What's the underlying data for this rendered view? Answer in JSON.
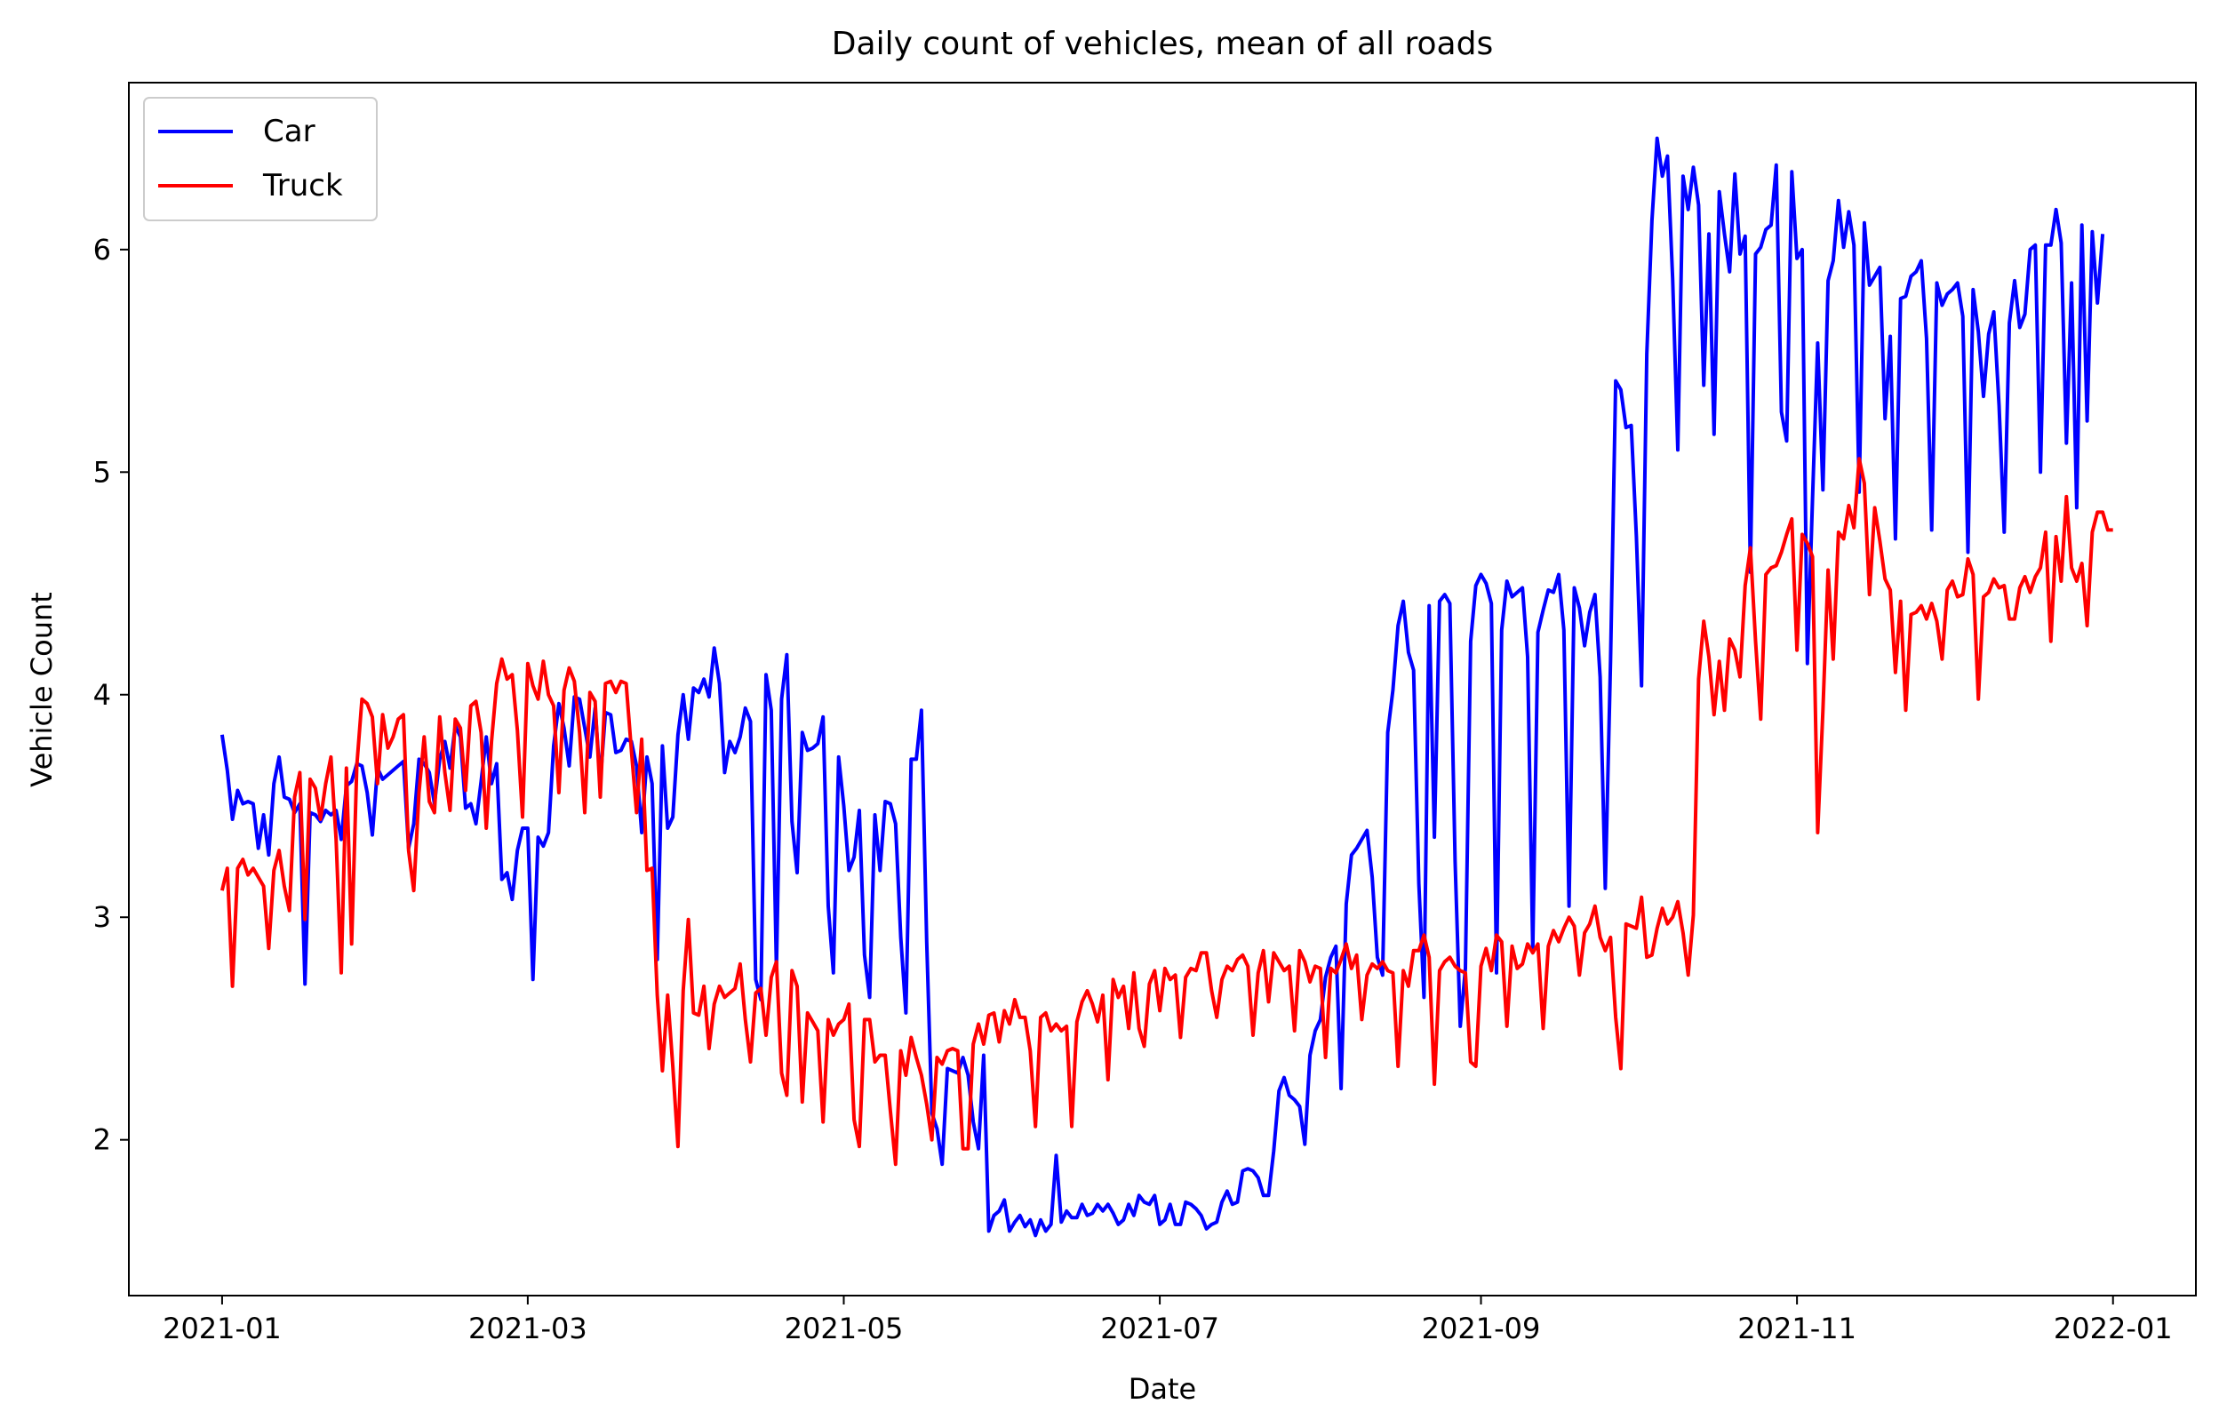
{
  "chart_data": {
    "type": "line",
    "title": "Daily count of vehicles, mean of all roads",
    "xlabel": "Date",
    "ylabel": "Vehicle Count",
    "x_start": "2021-01-01",
    "x_ticks": [
      "2021-01",
      "2021-03",
      "2021-05",
      "2021-07",
      "2021-09",
      "2021-11",
      "2022-01"
    ],
    "y_ticks": [
      2,
      3,
      4,
      5,
      6
    ],
    "ylim": [
      1.3,
      6.75
    ],
    "xlim": [
      "2020-12-14",
      "2022-01-17"
    ],
    "grid": false,
    "legend_position": "top-left",
    "series": [
      {
        "name": "Car",
        "color": "#0000ff",
        "values": [
          3.82,
          3.66,
          3.44,
          3.57,
          3.51,
          3.52,
          3.51,
          3.31,
          3.46,
          3.28,
          3.6,
          3.72,
          3.54,
          3.53,
          3.47,
          3.51,
          2.7,
          3.47,
          3.46,
          3.43,
          3.48,
          3.46,
          3.48,
          3.35,
          3.59,
          3.61,
          3.69,
          3.68,
          3.56,
          3.37,
          3.67,
          3.62,
          3.64,
          3.66,
          3.68,
          3.7,
          3.31,
          3.42,
          3.71,
          3.69,
          3.65,
          3.51,
          3.71,
          3.79,
          3.67,
          3.86,
          3.81,
          3.49,
          3.51,
          3.42,
          3.61,
          3.81,
          3.6,
          3.69,
          3.17,
          3.2,
          3.08,
          3.3,
          3.4,
          3.4,
          2.72,
          3.36,
          3.32,
          3.38,
          3.77,
          3.96,
          3.85,
          3.68,
          3.99,
          3.98,
          3.85,
          3.72,
          3.94,
          3.61,
          3.92,
          3.91,
          3.74,
          3.75,
          3.8,
          3.79,
          3.68,
          3.38,
          3.72,
          3.6,
          2.81,
          3.77,
          3.4,
          3.45,
          3.82,
          4.0,
          3.8,
          4.03,
          4.01,
          4.07,
          3.99,
          4.21,
          4.05,
          3.65,
          3.79,
          3.74,
          3.81,
          3.94,
          3.88,
          2.72,
          2.63,
          4.09,
          3.93,
          2.77,
          3.98,
          4.18,
          3.43,
          3.2,
          3.83,
          3.75,
          3.76,
          3.78,
          3.9,
          3.05,
          2.75,
          3.72,
          3.5,
          3.21,
          3.27,
          3.48,
          2.83,
          2.64,
          3.46,
          3.21,
          3.52,
          3.51,
          3.42,
          2.91,
          2.57,
          3.71,
          3.71,
          3.93,
          2.89,
          2.12,
          2.05,
          1.89,
          2.32,
          2.31,
          2.3,
          2.37,
          2.29,
          2.08,
          1.96,
          2.38,
          1.59,
          1.66,
          1.68,
          1.73,
          1.59,
          1.63,
          1.66,
          1.61,
          1.64,
          1.57,
          1.64,
          1.59,
          1.62,
          1.93,
          1.63,
          1.68,
          1.65,
          1.65,
          1.71,
          1.66,
          1.67,
          1.71,
          1.68,
          1.71,
          1.67,
          1.62,
          1.64,
          1.71,
          1.66,
          1.75,
          1.72,
          1.71,
          1.75,
          1.62,
          1.64,
          1.71,
          1.62,
          1.62,
          1.72,
          1.71,
          1.69,
          1.66,
          1.6,
          1.62,
          1.63,
          1.72,
          1.77,
          1.71,
          1.72,
          1.86,
          1.87,
          1.86,
          1.83,
          1.75,
          1.75,
          1.95,
          2.22,
          2.28,
          2.2,
          2.18,
          2.15,
          1.98,
          2.38,
          2.49,
          2.54,
          2.73,
          2.82,
          2.87,
          2.23,
          3.06,
          3.28,
          3.31,
          3.35,
          3.39,
          3.18,
          2.82,
          2.74,
          3.83,
          4.02,
          4.31,
          4.42,
          4.19,
          4.11,
          3.15,
          2.64,
          4.4,
          3.36,
          4.42,
          4.45,
          4.41,
          3.25,
          2.51,
          2.77,
          4.24,
          4.49,
          4.54,
          4.5,
          4.41,
          2.75,
          4.29,
          4.51,
          4.44,
          4.46,
          4.48,
          4.17,
          2.85,
          4.28,
          4.38,
          4.47,
          4.46,
          4.54,
          4.29,
          3.05,
          4.48,
          4.39,
          4.22,
          4.37,
          4.45,
          4.08,
          3.13,
          4.15,
          5.41,
          5.37,
          5.2,
          5.21,
          4.71,
          4.04,
          5.53,
          6.13,
          6.5,
          6.33,
          6.42,
          5.87,
          5.1,
          6.33,
          6.18,
          6.37,
          6.2,
          5.39,
          6.07,
          5.17,
          6.26,
          6.07,
          5.9,
          6.34,
          5.98,
          6.06,
          4.55,
          5.98,
          6.01,
          6.09,
          6.11,
          6.38,
          5.27,
          5.14,
          6.35,
          5.96,
          6.0,
          4.14,
          4.88,
          5.58,
          4.92,
          5.86,
          5.95,
          6.22,
          6.01,
          6.17,
          6.02,
          4.91,
          6.12,
          5.84,
          5.88,
          5.92,
          5.24,
          5.61,
          4.7,
          5.78,
          5.79,
          5.88,
          5.9,
          5.95,
          5.6,
          4.74,
          5.85,
          5.75,
          5.8,
          5.82,
          5.85,
          5.7,
          4.64,
          5.82,
          5.63,
          5.34,
          5.62,
          5.72,
          5.3,
          4.73,
          5.67,
          5.86,
          5.65,
          5.71,
          6.0,
          6.02,
          5.0,
          6.02,
          6.02,
          6.18,
          6.03,
          5.13,
          5.85,
          4.84,
          6.11,
          5.23,
          6.08,
          5.76,
          6.07
        ]
      },
      {
        "name": "Truck",
        "color": "#ff0000",
        "values": [
          3.12,
          3.22,
          2.69,
          3.22,
          3.26,
          3.19,
          3.22,
          3.18,
          3.14,
          2.86,
          3.21,
          3.3,
          3.14,
          3.03,
          3.54,
          3.65,
          2.99,
          3.62,
          3.58,
          3.44,
          3.6,
          3.72,
          3.35,
          2.75,
          3.67,
          2.88,
          3.68,
          3.98,
          3.96,
          3.9,
          3.6,
          3.91,
          3.76,
          3.81,
          3.89,
          3.91,
          3.3,
          3.12,
          3.56,
          3.81,
          3.52,
          3.47,
          3.9,
          3.65,
          3.48,
          3.89,
          3.85,
          3.57,
          3.95,
          3.97,
          3.83,
          3.4,
          3.79,
          4.05,
          4.16,
          4.07,
          4.09,
          3.84,
          3.45,
          4.14,
          4.04,
          3.98,
          4.15,
          4.0,
          3.95,
          3.56,
          4.02,
          4.12,
          4.06,
          3.83,
          3.47,
          4.01,
          3.97,
          3.54,
          4.05,
          4.06,
          4.01,
          4.06,
          4.05,
          3.75,
          3.47,
          3.8,
          3.21,
          3.22,
          2.65,
          2.31,
          2.65,
          2.33,
          1.97,
          2.67,
          2.99,
          2.57,
          2.56,
          2.69,
          2.41,
          2.61,
          2.69,
          2.64,
          2.66,
          2.68,
          2.79,
          2.54,
          2.35,
          2.66,
          2.68,
          2.47,
          2.73,
          2.8,
          2.3,
          2.2,
          2.76,
          2.69,
          2.17,
          2.57,
          2.53,
          2.49,
          2.08,
          2.54,
          2.47,
          2.52,
          2.54,
          2.61,
          2.09,
          1.97,
          2.54,
          2.54,
          2.35,
          2.38,
          2.38,
          2.13,
          1.89,
          2.4,
          2.29,
          2.46,
          2.37,
          2.29,
          2.16,
          2.0,
          2.37,
          2.34,
          2.4,
          2.41,
          2.4,
          1.96,
          1.96,
          2.43,
          2.52,
          2.43,
          2.56,
          2.57,
          2.44,
          2.58,
          2.52,
          2.63,
          2.55,
          2.55,
          2.4,
          2.06,
          2.55,
          2.57,
          2.49,
          2.52,
          2.49,
          2.51,
          2.06,
          2.53,
          2.62,
          2.67,
          2.61,
          2.53,
          2.65,
          2.27,
          2.72,
          2.64,
          2.69,
          2.5,
          2.75,
          2.5,
          2.42,
          2.7,
          2.76,
          2.58,
          2.77,
          2.72,
          2.74,
          2.46,
          2.73,
          2.77,
          2.76,
          2.84,
          2.84,
          2.67,
          2.55,
          2.72,
          2.78,
          2.76,
          2.81,
          2.83,
          2.78,
          2.47,
          2.75,
          2.85,
          2.62,
          2.84,
          2.8,
          2.76,
          2.78,
          2.49,
          2.85,
          2.8,
          2.71,
          2.78,
          2.77,
          2.37,
          2.77,
          2.75,
          2.81,
          2.88,
          2.77,
          2.83,
          2.54,
          2.74,
          2.79,
          2.77,
          2.8,
          2.76,
          2.75,
          2.33,
          2.76,
          2.69,
          2.85,
          2.85,
          2.92,
          2.82,
          2.25,
          2.76,
          2.8,
          2.82,
          2.78,
          2.76,
          2.75,
          2.35,
          2.33,
          2.78,
          2.86,
          2.76,
          2.92,
          2.89,
          2.51,
          2.87,
          2.77,
          2.79,
          2.88,
          2.84,
          2.88,
          2.5,
          2.87,
          2.94,
          2.89,
          2.95,
          3.0,
          2.96,
          2.74,
          2.93,
          2.97,
          3.05,
          2.91,
          2.85,
          2.91,
          2.55,
          2.32,
          2.97,
          2.96,
          2.95,
          3.09,
          2.82,
          2.83,
          2.95,
          3.04,
          2.97,
          3.0,
          3.07,
          2.93,
          2.74,
          3.01,
          4.07,
          4.33,
          4.17,
          3.91,
          4.15,
          3.93,
          4.25,
          4.2,
          4.08,
          4.49,
          4.66,
          4.24,
          3.89,
          4.54,
          4.57,
          4.58,
          4.64,
          4.72,
          4.79,
          4.2,
          4.72,
          4.68,
          4.62,
          3.38,
          3.93,
          4.56,
          4.16,
          4.73,
          4.7,
          4.85,
          4.75,
          5.06,
          4.95,
          4.45,
          4.84,
          4.69,
          4.52,
          4.47,
          4.1,
          4.42,
          3.93,
          4.36,
          4.37,
          4.4,
          4.34,
          4.41,
          4.33,
          4.16,
          4.47,
          4.51,
          4.44,
          4.45,
          4.61,
          4.54,
          3.98,
          4.44,
          4.46,
          4.52,
          4.48,
          4.49,
          4.34,
          4.34,
          4.48,
          4.53,
          4.46,
          4.53,
          4.57,
          4.73,
          4.24,
          4.71,
          4.51,
          4.89,
          4.57,
          4.51,
          4.59,
          4.31,
          4.73,
          4.82,
          4.82,
          4.74,
          4.74
        ]
      }
    ]
  }
}
